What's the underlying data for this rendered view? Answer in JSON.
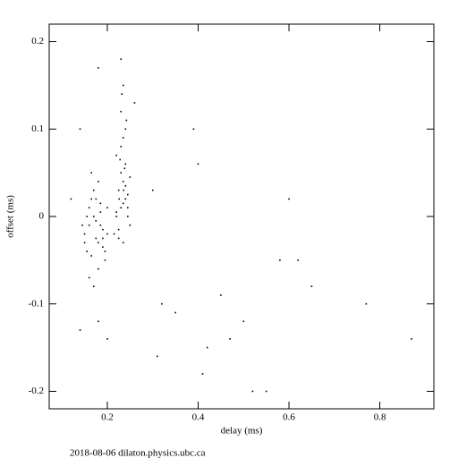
{
  "chart_data": {
    "type": "scatter",
    "xlabel": "delay (ms)",
    "ylabel": "offset (ms)",
    "footer": "2018-08-06 dilaton.physics.ubc.ca",
    "color": "#000000",
    "x": [
      0.15,
      0.16,
      0.17,
      0.18,
      0.19,
      0.2,
      0.155,
      0.165,
      0.175,
      0.185,
      0.195,
      0.145,
      0.17,
      0.18,
      0.16,
      0.19,
      0.175,
      0.165,
      0.185,
      0.155,
      0.2,
      0.17,
      0.18,
      0.16,
      0.19,
      0.175,
      0.15,
      0.185,
      0.165,
      0.195,
      0.22,
      0.23,
      0.24,
      0.25,
      0.225,
      0.235,
      0.245,
      0.215,
      0.23,
      0.24,
      0.225,
      0.235,
      0.245,
      0.22,
      0.23,
      0.24,
      0.25,
      0.225,
      0.235,
      0.245,
      0.23,
      0.24,
      0.22,
      0.235,
      0.228,
      0.238,
      0.232,
      0.242,
      0.226,
      0.236,
      0.12,
      0.14,
      0.18,
      0.23,
      0.235,
      0.26,
      0.3,
      0.32,
      0.35,
      0.4,
      0.41,
      0.45,
      0.47,
      0.5,
      0.52,
      0.55,
      0.58,
      0.6,
      0.62,
      0.65,
      0.77,
      0.87,
      0.39,
      0.42,
      0.31,
      0.14,
      0.18,
      0.2
    ],
    "y": [
      -0.02,
      -0.01,
      0.0,
      -0.03,
      -0.015,
      0.01,
      -0.04,
      0.02,
      -0.025,
      0.005,
      -0.05,
      -0.01,
      0.03,
      -0.06,
      0.01,
      -0.035,
      -0.005,
      -0.045,
      0.015,
      0.0,
      -0.02,
      -0.08,
      0.04,
      -0.07,
      -0.025,
      0.02,
      -0.03,
      -0.01,
      0.05,
      -0.04,
      0.0,
      0.01,
      0.02,
      -0.01,
      0.03,
      0.04,
      0.0,
      -0.02,
      0.05,
      0.06,
      -0.015,
      0.015,
      0.025,
      0.07,
      0.08,
      0.035,
      0.045,
      -0.025,
      0.09,
      0.01,
      0.12,
      0.1,
      0.005,
      -0.03,
      0.065,
      0.055,
      0.14,
      0.11,
      0.02,
      0.03,
      0.02,
      -0.13,
      0.17,
      0.18,
      0.15,
      0.13,
      0.03,
      -0.1,
      -0.11,
      0.06,
      -0.18,
      -0.09,
      -0.14,
      -0.12,
      -0.2,
      -0.2,
      -0.05,
      0.02,
      -0.05,
      -0.08,
      -0.1,
      -0.14,
      0.1,
      -0.15,
      -0.16,
      0.1,
      -0.12,
      -0.14
    ],
    "xlim": [
      0.072,
      0.919
    ],
    "ylim": [
      -0.22,
      0.22
    ],
    "xticks": [
      0.2,
      0.4,
      0.6,
      0.8
    ],
    "yticks": [
      -0.2,
      -0.1,
      0,
      0.1,
      0.2
    ]
  }
}
